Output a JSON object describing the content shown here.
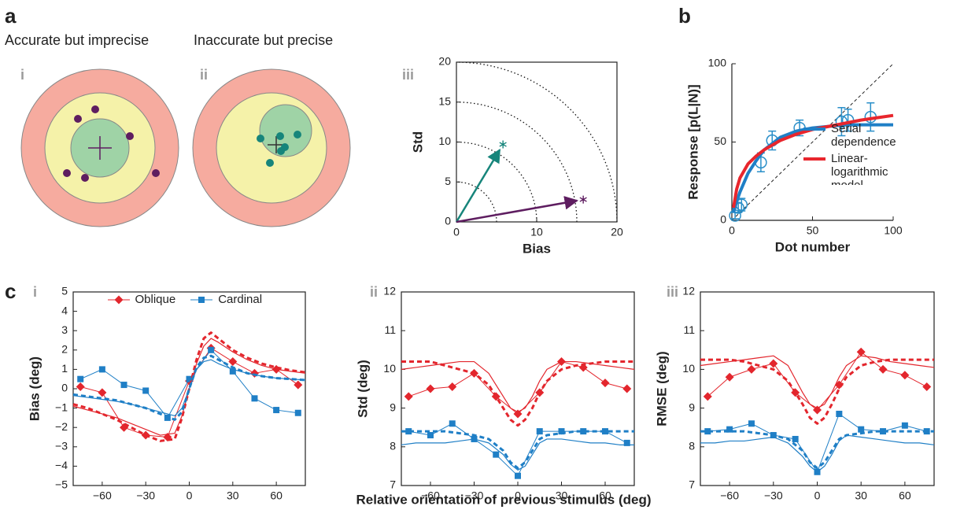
{
  "panel_a": {
    "label": "a",
    "targets": [
      {
        "label": "i",
        "caption": "Accurate but imprecise"
      },
      {
        "label": "ii",
        "caption": "Inaccurate but precise"
      }
    ]
  },
  "panel_b": {
    "label": "b"
  },
  "panel_c": {
    "label": "c",
    "xlabel": "Relative orientation of previous stimulus (deg)"
  },
  "chart_data": [
    {
      "type": "vector",
      "label": "iii",
      "xlabel": "Bias",
      "ylabel": "Std",
      "xlim": [
        0,
        20
      ],
      "ylim": [
        0,
        20
      ],
      "xticks": [
        0,
        10,
        20
      ],
      "yticks": [
        0,
        5,
        10,
        15,
        20
      ],
      "grid": "arcs",
      "frame": "box",
      "x": [
        5.8,
        15.8
      ],
      "values": [
        9.7,
        2.8
      ],
      "colors": [
        "#17857b",
        "#5e1d60"
      ]
    },
    {
      "type": "line",
      "xlabel": "Dot number",
      "ylabel": "Response [p(L|N)]",
      "xlim": [
        0,
        100
      ],
      "ylim": [
        0,
        100
      ],
      "xticks": [
        0,
        50,
        100
      ],
      "yticks": [
        0,
        50,
        100
      ],
      "frame": "axes",
      "identity_line": true,
      "legend": "lower right",
      "series": [
        {
          "x": [
            2,
            4,
            6,
            18,
            25,
            42,
            68,
            72,
            86
          ],
          "values": [
            3,
            8,
            10,
            37,
            51,
            59,
            63,
            64,
            66
          ],
          "errors": [
            2,
            3,
            4,
            6,
            6,
            5,
            9,
            7,
            9
          ],
          "color": "#2a8fc9",
          "marker": "circle",
          "style": "none",
          "linewidth": 1.5
        },
        {
          "name": "Serial dependence",
          "x": [
            1,
            3,
            5,
            10,
            15,
            20,
            30,
            40,
            50,
            60,
            70,
            80,
            90,
            100
          ],
          "values": [
            5,
            12,
            18,
            30,
            38,
            45,
            53,
            57,
            59,
            60,
            61,
            61,
            61,
            61
          ],
          "color": "#1f7fc6",
          "marker": "none",
          "style": "solid",
          "linewidth": 4
        },
        {
          "name": "Linear-logarithmic model",
          "x": [
            1,
            3,
            5,
            10,
            15,
            20,
            30,
            40,
            50,
            60,
            70,
            80,
            90,
            100
          ],
          "values": [
            8,
            20,
            27,
            36,
            41,
            45,
            51,
            55,
            58,
            60,
            62,
            64,
            65.5,
            67
          ],
          "color": "#e8262d",
          "marker": "none",
          "style": "solid",
          "linewidth": 4
        }
      ]
    },
    {
      "type": "line",
      "label": "i",
      "ylabel": "Bias (deg)",
      "xlim": [
        -80,
        80
      ],
      "ylim": [
        -5,
        5
      ],
      "frame": "box",
      "legend": "upper center",
      "xticks": [
        {
          "value": -60,
          "label": "−60"
        },
        {
          "value": -30,
          "label": "−30"
        },
        0,
        30,
        60
      ],
      "yticks": [
        {
          "value": -5,
          "label": "−5"
        },
        {
          "value": -4,
          "label": "−4"
        },
        {
          "value": -3,
          "label": "−3"
        },
        {
          "value": -2,
          "label": "−2"
        },
        {
          "value": -1,
          "label": "−1"
        },
        0,
        1,
        2,
        3,
        4,
        5
      ],
      "series": [
        {
          "name": "Oblique",
          "x": [
            -75,
            -60,
            -45,
            -30,
            -15,
            0,
            15,
            30,
            45,
            60,
            75
          ],
          "values": [
            0.1,
            -0.2,
            -2.0,
            -2.4,
            -2.5,
            0.4,
            2.1,
            1.4,
            0.8,
            1.0,
            0.2
          ],
          "color": "#e3262d",
          "marker": "diamond",
          "style": "solid",
          "linewidth": 1
        },
        {
          "name": "Cardinal",
          "x": [
            -75,
            -60,
            -45,
            -30,
            -15,
            0,
            15,
            30,
            45,
            60,
            75
          ],
          "values": [
            0.5,
            1.0,
            0.2,
            -0.1,
            -1.5,
            0.5,
            2.0,
            0.9,
            -0.5,
            -1.1,
            -1.25
          ],
          "color": "#1f7fc6",
          "marker": "square",
          "style": "solid",
          "linewidth": 1
        },
        {
          "x": [
            -80,
            -70,
            -60,
            -50,
            -40,
            -30,
            -20,
            -10,
            -5,
            0,
            5,
            10,
            15,
            20,
            30,
            40,
            50,
            60,
            70,
            80
          ],
          "values": [
            -0.8,
            -1.0,
            -1.3,
            -1.6,
            -2.0,
            -2.4,
            -2.7,
            -2.6,
            -1.5,
            0,
            1.5,
            2.6,
            2.9,
            2.6,
            2.0,
            1.6,
            1.3,
            1.1,
            0.95,
            0.85
          ],
          "color": "#e3262d",
          "marker": "none",
          "style": "dashed",
          "linewidth": 3
        },
        {
          "x": [
            -80,
            -70,
            -60,
            -50,
            -40,
            -30,
            -20,
            -10,
            -5,
            0,
            5,
            10,
            15,
            20,
            30,
            40,
            50,
            60,
            70,
            80
          ],
          "values": [
            -0.9,
            -1.1,
            -1.3,
            -1.5,
            -1.8,
            -2.1,
            -2.4,
            -2.3,
            -1.4,
            0,
            1.3,
            2.2,
            2.6,
            2.4,
            1.9,
            1.5,
            1.2,
            1.0,
            0.9,
            0.8
          ],
          "color": "#e3262d",
          "marker": "none",
          "style": "solid",
          "linewidth": 1.2
        },
        {
          "x": [
            -80,
            -70,
            -60,
            -50,
            -40,
            -30,
            -20,
            -10,
            -5,
            0,
            5,
            10,
            15,
            20,
            30,
            40,
            50,
            60,
            70,
            80
          ],
          "values": [
            -0.3,
            -0.4,
            -0.5,
            -0.6,
            -0.8,
            -1.0,
            -1.3,
            -1.6,
            -1.2,
            0,
            1.1,
            1.6,
            1.7,
            1.5,
            1.1,
            0.8,
            0.65,
            0.55,
            0.5,
            0.45
          ],
          "color": "#1f7fc6",
          "marker": "none",
          "style": "dashed",
          "linewidth": 3
        },
        {
          "x": [
            -80,
            -70,
            -60,
            -50,
            -40,
            -30,
            -20,
            -10,
            -5,
            0,
            5,
            10,
            15,
            20,
            30,
            40,
            50,
            60,
            70,
            80
          ],
          "values": [
            -0.35,
            -0.45,
            -0.55,
            -0.65,
            -0.8,
            -1.0,
            -1.2,
            -1.4,
            -1.0,
            0,
            1.0,
            1.4,
            1.5,
            1.3,
            1.0,
            0.8,
            0.65,
            0.55,
            0.5,
            0.45
          ],
          "color": "#1f7fc6",
          "marker": "none",
          "style": "solid",
          "linewidth": 1.2
        }
      ]
    },
    {
      "type": "line",
      "label": "ii",
      "ylabel": "Std (deg)",
      "xlim": [
        -80,
        80
      ],
      "ylim": [
        7,
        12
      ],
      "frame": "box",
      "xticks": [
        {
          "value": -60,
          "label": "−60"
        },
        {
          "value": -30,
          "label": "−30"
        },
        0,
        30,
        60
      ],
      "yticks": [
        7,
        8,
        9,
        10,
        11,
        12
      ],
      "series": [
        {
          "x": [
            -75,
            -60,
            -45,
            -30,
            -15,
            0,
            15,
            30,
            45,
            60,
            75
          ],
          "values": [
            9.3,
            9.5,
            9.55,
            9.9,
            9.3,
            8.85,
            9.4,
            10.2,
            10.05,
            9.65,
            9.5
          ],
          "color": "#e3262d",
          "marker": "diamond",
          "style": "solid",
          "linewidth": 1
        },
        {
          "x": [
            -75,
            -60,
            -45,
            -30,
            -15,
            0,
            15,
            30,
            45,
            60,
            75
          ],
          "values": [
            8.4,
            8.3,
            8.6,
            8.2,
            7.8,
            7.25,
            8.4,
            8.4,
            8.4,
            8.4,
            8.1
          ],
          "color": "#1f7fc6",
          "marker": "square",
          "style": "solid",
          "linewidth": 1
        },
        {
          "x": [
            -80,
            -70,
            -60,
            -50,
            -40,
            -30,
            -20,
            -10,
            -5,
            0,
            5,
            10,
            15,
            20,
            30,
            40,
            50,
            60,
            70,
            80
          ],
          "values": [
            10.2,
            10.2,
            10.2,
            10.1,
            10.0,
            9.9,
            9.6,
            9.0,
            8.7,
            8.55,
            8.7,
            9.0,
            9.4,
            9.7,
            10.0,
            10.1,
            10.15,
            10.2,
            10.2,
            10.2
          ],
          "color": "#e3262d",
          "marker": "none",
          "style": "dashed",
          "linewidth": 3
        },
        {
          "x": [
            -80,
            -70,
            -60,
            -50,
            -40,
            -30,
            -20,
            -10,
            -5,
            0,
            5,
            10,
            15,
            20,
            30,
            40,
            50,
            60,
            70,
            80
          ],
          "values": [
            10.0,
            10.05,
            10.1,
            10.15,
            10.2,
            10.2,
            9.9,
            9.3,
            9.0,
            8.9,
            9.0,
            9.3,
            9.7,
            10.0,
            10.2,
            10.2,
            10.15,
            10.1,
            10.05,
            10.0
          ],
          "color": "#e3262d",
          "marker": "none",
          "style": "solid",
          "linewidth": 1.2
        },
        {
          "x": [
            -80,
            -70,
            -60,
            -50,
            -40,
            -30,
            -20,
            -10,
            -5,
            0,
            5,
            10,
            15,
            20,
            30,
            40,
            50,
            60,
            70,
            80
          ],
          "values": [
            8.4,
            8.4,
            8.4,
            8.4,
            8.35,
            8.3,
            8.2,
            7.9,
            7.6,
            7.45,
            7.6,
            7.9,
            8.2,
            8.3,
            8.35,
            8.4,
            8.4,
            8.4,
            8.4,
            8.4
          ],
          "color": "#1f7fc6",
          "marker": "none",
          "style": "dashed",
          "linewidth": 3
        },
        {
          "x": [
            -80,
            -70,
            -60,
            -50,
            -40,
            -30,
            -20,
            -10,
            -5,
            0,
            5,
            10,
            15,
            20,
            30,
            40,
            50,
            60,
            70,
            80
          ],
          "values": [
            8.05,
            8.1,
            8.1,
            8.1,
            8.15,
            8.2,
            8.1,
            7.8,
            7.55,
            7.4,
            7.5,
            7.8,
            8.1,
            8.2,
            8.2,
            8.15,
            8.1,
            8.1,
            8.05,
            8.05
          ],
          "color": "#1f7fc6",
          "marker": "none",
          "style": "solid",
          "linewidth": 1.2
        }
      ]
    },
    {
      "type": "line",
      "label": "iii",
      "ylabel": "RMSE (deg)",
      "xlim": [
        -80,
        80
      ],
      "ylim": [
        7,
        12
      ],
      "frame": "box",
      "xticks": [
        {
          "value": -60,
          "label": "−60"
        },
        {
          "value": -30,
          "label": "−30"
        },
        0,
        30,
        60
      ],
      "yticks": [
        7,
        8,
        9,
        10,
        11,
        12
      ],
      "series": [
        {
          "x": [
            -75,
            -60,
            -45,
            -30,
            -15,
            0,
            15,
            30,
            45,
            60,
            75
          ],
          "values": [
            9.3,
            9.8,
            10.0,
            10.15,
            9.4,
            8.95,
            9.6,
            10.45,
            10.0,
            9.85,
            9.55
          ],
          "color": "#e3262d",
          "marker": "diamond",
          "style": "solid",
          "linewidth": 1
        },
        {
          "x": [
            -75,
            -60,
            -45,
            -30,
            -15,
            0,
            15,
            30,
            45,
            60,
            75
          ],
          "values": [
            8.4,
            8.45,
            8.6,
            8.3,
            8.2,
            7.35,
            8.85,
            8.45,
            8.4,
            8.55,
            8.4
          ],
          "color": "#1f7fc6",
          "marker": "square",
          "style": "solid",
          "linewidth": 1
        },
        {
          "x": [
            -80,
            -70,
            -60,
            -50,
            -40,
            -30,
            -20,
            -10,
            -5,
            0,
            5,
            10,
            15,
            20,
            30,
            40,
            50,
            60,
            70,
            80
          ],
          "values": [
            10.25,
            10.25,
            10.25,
            10.2,
            10.1,
            10.0,
            9.7,
            9.1,
            8.75,
            8.6,
            8.75,
            9.1,
            9.5,
            9.8,
            10.1,
            10.2,
            10.25,
            10.25,
            10.25,
            10.25
          ],
          "color": "#e3262d",
          "marker": "none",
          "style": "dashed",
          "linewidth": 3
        },
        {
          "x": [
            -80,
            -70,
            -60,
            -50,
            -40,
            -30,
            -20,
            -10,
            -5,
            0,
            5,
            10,
            15,
            20,
            30,
            40,
            50,
            60,
            70,
            80
          ],
          "values": [
            10.1,
            10.15,
            10.2,
            10.25,
            10.3,
            10.35,
            10.1,
            9.4,
            9.1,
            9.0,
            9.1,
            9.4,
            9.8,
            10.1,
            10.35,
            10.3,
            10.2,
            10.15,
            10.1,
            10.05
          ],
          "color": "#e3262d",
          "marker": "none",
          "style": "solid",
          "linewidth": 1.2
        },
        {
          "x": [
            -80,
            -70,
            -60,
            -50,
            -40,
            -30,
            -20,
            -10,
            -5,
            0,
            5,
            10,
            15,
            20,
            30,
            40,
            50,
            60,
            70,
            80
          ],
          "values": [
            8.4,
            8.4,
            8.4,
            8.4,
            8.35,
            8.3,
            8.2,
            7.9,
            7.6,
            7.45,
            7.6,
            7.9,
            8.2,
            8.3,
            8.35,
            8.4,
            8.4,
            8.4,
            8.4,
            8.4
          ],
          "color": "#1f7fc6",
          "marker": "none",
          "style": "dashed",
          "linewidth": 3
        },
        {
          "x": [
            -80,
            -70,
            -60,
            -50,
            -40,
            -30,
            -20,
            -10,
            -5,
            0,
            5,
            10,
            15,
            20,
            30,
            40,
            50,
            60,
            70,
            80
          ],
          "values": [
            8.1,
            8.1,
            8.15,
            8.15,
            8.2,
            8.25,
            8.1,
            7.75,
            7.5,
            7.35,
            7.5,
            7.8,
            8.15,
            8.3,
            8.25,
            8.2,
            8.15,
            8.1,
            8.1,
            8.05
          ],
          "color": "#1f7fc6",
          "marker": "none",
          "style": "solid",
          "linewidth": 1.2
        }
      ]
    }
  ]
}
